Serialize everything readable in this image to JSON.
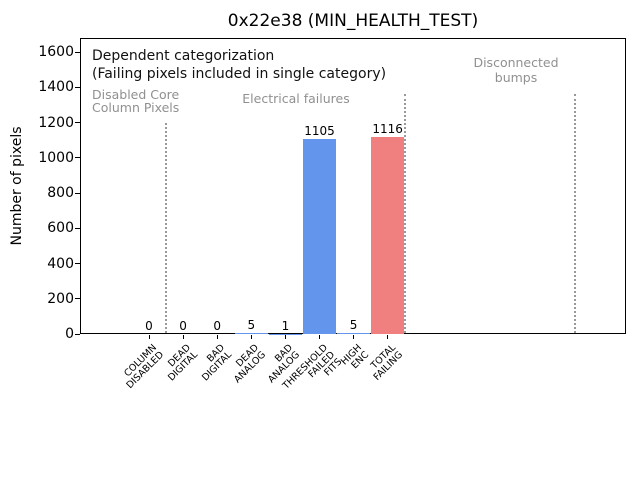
{
  "chart_data": {
    "type": "bar",
    "title": "0x22e38 (MIN_HEALTH_TEST)",
    "ylabel": "Number of pixels",
    "xlabel": "",
    "ylim": [
      0,
      1680
    ],
    "yticks": [
      0,
      200,
      400,
      600,
      800,
      1000,
      1200,
      1400,
      1600
    ],
    "grid": false,
    "legend": null,
    "categories": [
      "COLUMN\nDISABLED",
      "DEAD\nDIGITAL",
      "BAD\nDIGITAL",
      "DEAD\nANALOG",
      "BAD\nANALOG",
      "THRESHOLD\nFAILED\nFITS",
      "HIGH\nENC",
      "TOTAL\nFAILING"
    ],
    "values": [
      0,
      0,
      0,
      5,
      1,
      1105,
      5,
      1116
    ],
    "value_labels": [
      "0",
      "0",
      "0",
      "5",
      "1",
      "1105",
      "5",
      "1116"
    ],
    "bar_colors": [
      "#6495ed",
      "#6495ed",
      "#6495ed",
      "#6495ed",
      "#6495ed",
      "#6495ed",
      "#6495ed",
      "#f08080"
    ],
    "colors": {
      "bar_blue": "#6495ed",
      "bar_red": "#f08080",
      "gray_text": "#909090",
      "separator_gray": "#999999"
    },
    "annotations": {
      "heading_line1": "Dependent categorization",
      "heading_line2": "(Failing pixels included in single category)",
      "region_labels": [
        {
          "text": "Disabled Core\nColumn Pixels"
        },
        {
          "text": "Electrical failures"
        },
        {
          "text": "Disconnected\nbumps"
        }
      ],
      "separators": [
        {
          "between_categories": 0.5,
          "top_value": 1200
        },
        {
          "between_categories": 7.5,
          "top_value": 1360
        },
        {
          "between_categories": 12.5,
          "top_value": 1360
        }
      ]
    }
  }
}
